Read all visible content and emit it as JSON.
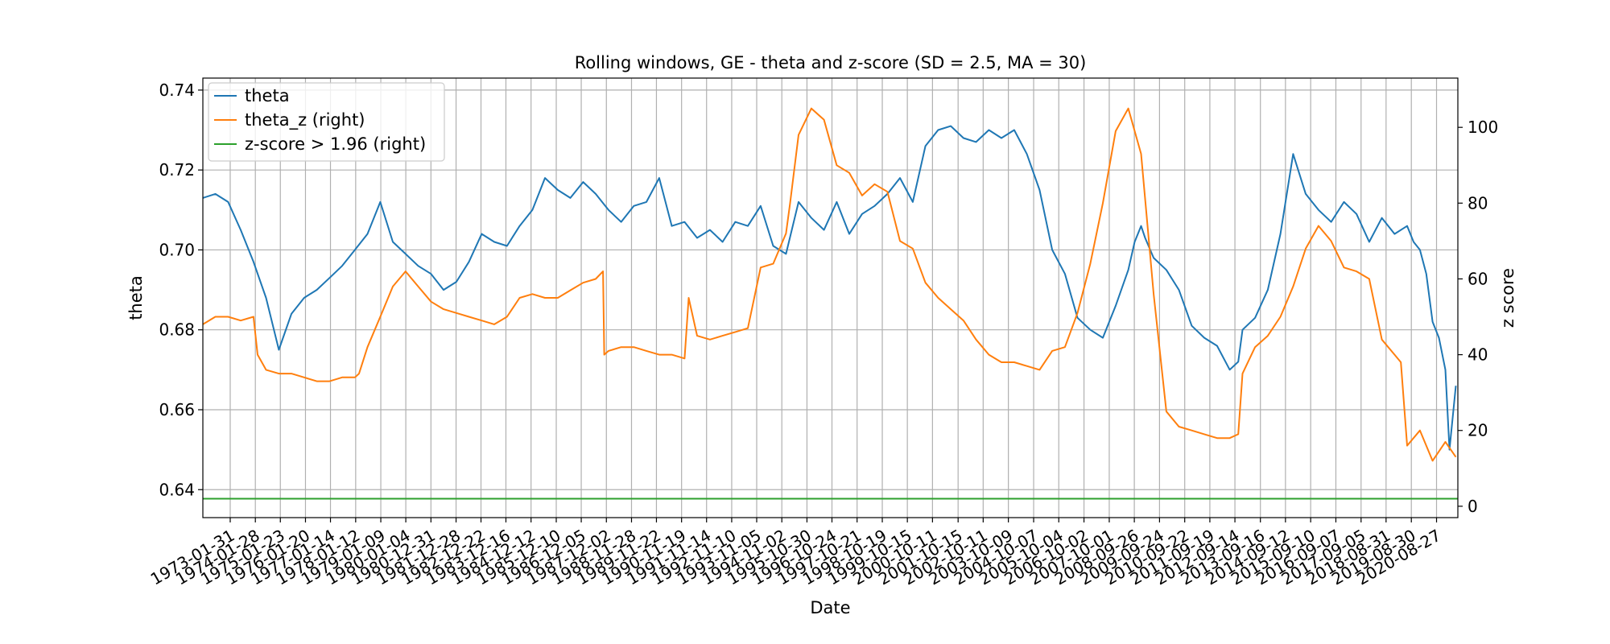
{
  "chart_data": {
    "type": "line",
    "title": "Rolling windows, GE - theta and z-score (SD = 2.5, MA = 30)",
    "xlabel": "Date",
    "ylabel": "theta",
    "ylabel_right": "z score",
    "ylim": [
      0.633,
      0.743
    ],
    "ylim_right": [
      -3,
      113
    ],
    "yticks": [
      0.64,
      0.66,
      0.68,
      0.7,
      0.72,
      0.74
    ],
    "ytick_labels": [
      "0.64",
      "0.66",
      "0.68",
      "0.70",
      "0.72",
      "0.74"
    ],
    "yticks_right": [
      0,
      20,
      40,
      60,
      80,
      100
    ],
    "ytick_labels_right": [
      "0",
      "20",
      "40",
      "60",
      "80",
      "100"
    ],
    "xlim": [
      "1972-01-03",
      "2021-06-30"
    ],
    "grid": true,
    "legend_position": "top-left",
    "xtick_labels": [
      "1973-01-31",
      "1974-01-28",
      "1975-01-23",
      "1976-01-20",
      "1977-01-14",
      "1978-01-12",
      "1979-01-09",
      "1980-01-04",
      "1980-12-31",
      "1981-12-28",
      "1982-12-22",
      "1983-12-16",
      "1984-12-12",
      "1985-12-10",
      "1986-12-05",
      "1987-12-02",
      "1988-11-28",
      "1989-11-22",
      "1990-11-19",
      "1991-11-14",
      "1992-11-10",
      "1993-11-05",
      "1994-11-02",
      "1995-10-30",
      "1996-10-24",
      "1997-10-21",
      "1998-10-19",
      "1999-10-15",
      "2000-10-11",
      "2001-10-15",
      "2002-10-11",
      "2003-10-09",
      "2004-10-07",
      "2005-10-04",
      "2006-10-02",
      "2007-10-01",
      "2008-09-26",
      "2009-09-24",
      "2010-09-22",
      "2011-09-19",
      "2012-09-14",
      "2013-09-16",
      "2014-09-12",
      "2015-09-10",
      "2016-09-07",
      "2017-09-05",
      "2018-08-31",
      "2019-08-30",
      "2020-08-27"
    ],
    "series": [
      {
        "name": "theta",
        "axis": "left",
        "color": "#1f77b4",
        "x": [
          "1972-01-03",
          "1972-07-01",
          "1973-01-01",
          "1973-07-01",
          "1974-01-01",
          "1974-07-01",
          "1975-01-01",
          "1975-07-01",
          "1976-01-01",
          "1976-07-01",
          "1977-01-01",
          "1977-07-01",
          "1978-01-01",
          "1978-07-01",
          "1979-01-01",
          "1979-07-01",
          "1980-01-01",
          "1980-07-01",
          "1981-01-01",
          "1981-07-01",
          "1982-01-01",
          "1982-07-01",
          "1983-01-01",
          "1983-07-01",
          "1984-01-01",
          "1984-07-01",
          "1985-01-01",
          "1985-07-01",
          "1986-01-01",
          "1986-07-01",
          "1987-01-01",
          "1987-07-01",
          "1988-01-01",
          "1988-07-01",
          "1989-01-01",
          "1989-07-01",
          "1990-01-01",
          "1990-07-01",
          "1991-01-01",
          "1991-07-01",
          "1992-01-01",
          "1992-07-01",
          "1993-01-01",
          "1993-07-01",
          "1994-01-01",
          "1994-07-01",
          "1995-01-01",
          "1995-07-01",
          "1996-01-01",
          "1996-07-01",
          "1997-01-01",
          "1997-07-01",
          "1998-01-01",
          "1998-07-01",
          "1999-01-01",
          "1999-07-01",
          "2000-01-01",
          "2000-07-01",
          "2001-01-01",
          "2001-07-01",
          "2002-01-01",
          "2002-07-01",
          "2003-01-01",
          "2003-07-01",
          "2004-01-01",
          "2004-07-01",
          "2005-01-01",
          "2005-07-01",
          "2006-01-01",
          "2006-07-01",
          "2007-01-01",
          "2007-07-01",
          "2008-01-01",
          "2008-07-01",
          "2008-10-01",
          "2009-01-01",
          "2009-03-01",
          "2009-07-01",
          "2010-01-01",
          "2010-07-01",
          "2011-01-01",
          "2011-07-01",
          "2012-01-01",
          "2012-07-01",
          "2012-11-01",
          "2013-01-01",
          "2013-07-01",
          "2014-01-01",
          "2014-07-01",
          "2015-01-01",
          "2015-07-01",
          "2016-01-01",
          "2016-07-01",
          "2017-01-01",
          "2017-07-01",
          "2018-01-01",
          "2018-07-01",
          "2019-01-01",
          "2019-07-01",
          "2019-10-01",
          "2020-01-01",
          "2020-04-01",
          "2020-07-01",
          "2020-10-01",
          "2021-01-01",
          "2021-03-01",
          "2021-06-01"
        ],
        "y": [
          0.713,
          0.714,
          0.712,
          0.705,
          0.697,
          0.688,
          0.675,
          0.684,
          0.688,
          0.69,
          0.693,
          0.696,
          0.7,
          0.704,
          0.712,
          0.702,
          0.699,
          0.696,
          0.694,
          0.69,
          0.692,
          0.697,
          0.704,
          0.702,
          0.701,
          0.706,
          0.71,
          0.718,
          0.715,
          0.713,
          0.717,
          0.714,
          0.71,
          0.707,
          0.711,
          0.712,
          0.718,
          0.706,
          0.707,
          0.703,
          0.705,
          0.702,
          0.707,
          0.706,
          0.711,
          0.701,
          0.699,
          0.712,
          0.708,
          0.705,
          0.712,
          0.704,
          0.709,
          0.711,
          0.714,
          0.718,
          0.712,
          0.726,
          0.73,
          0.731,
          0.728,
          0.727,
          0.73,
          0.728,
          0.73,
          0.724,
          0.715,
          0.7,
          0.694,
          0.683,
          0.68,
          0.678,
          0.686,
          0.695,
          0.702,
          0.706,
          0.703,
          0.698,
          0.695,
          0.69,
          0.681,
          0.678,
          0.676,
          0.67,
          0.672,
          0.68,
          0.683,
          0.69,
          0.704,
          0.724,
          0.714,
          0.71,
          0.707,
          0.712,
          0.709,
          0.702,
          0.708,
          0.704,
          0.706,
          0.702,
          0.7,
          0.694,
          0.682,
          0.678,
          0.67,
          0.65,
          0.666
        ]
      },
      {
        "name": "theta_z (right)",
        "axis": "right",
        "color": "#ff7f0e",
        "x": [
          "1972-01-03",
          "1972-07-01",
          "1973-01-01",
          "1973-07-01",
          "1974-01-01",
          "1974-03-01",
          "1974-07-01",
          "1975-01-01",
          "1975-07-01",
          "1976-01-01",
          "1976-07-01",
          "1977-01-01",
          "1977-07-01",
          "1978-01-01",
          "1978-03-01",
          "1978-07-01",
          "1979-01-01",
          "1979-07-01",
          "1980-01-01",
          "1980-07-01",
          "1981-01-01",
          "1981-07-01",
          "1982-01-01",
          "1982-07-01",
          "1983-01-01",
          "1983-07-01",
          "1984-01-01",
          "1984-07-01",
          "1985-01-01",
          "1985-07-01",
          "1986-01-01",
          "1986-07-01",
          "1987-01-01",
          "1987-07-01",
          "1987-10-15",
          "1987-11-01",
          "1988-01-01",
          "1988-07-01",
          "1989-01-01",
          "1989-07-01",
          "1990-01-01",
          "1990-07-01",
          "1991-01-01",
          "1991-03-01",
          "1991-07-01",
          "1992-01-01",
          "1992-07-01",
          "1993-01-01",
          "1993-07-01",
          "1994-01-01",
          "1994-07-01",
          "1995-01-01",
          "1995-03-01",
          "1995-07-01",
          "1996-01-01",
          "1996-07-01",
          "1997-01-01",
          "1997-07-01",
          "1998-01-01",
          "1998-07-01",
          "1999-01-01",
          "1999-07-01",
          "2000-01-01",
          "2000-07-01",
          "2001-01-01",
          "2001-07-01",
          "2002-01-01",
          "2002-07-01",
          "2003-01-01",
          "2003-07-01",
          "2004-01-01",
          "2004-07-01",
          "2005-01-01",
          "2005-07-01",
          "2006-01-01",
          "2006-07-01",
          "2007-01-01",
          "2007-07-01",
          "2008-01-01",
          "2008-07-01",
          "2009-01-01",
          "2009-07-01",
          "2010-01-01",
          "2010-07-01",
          "2011-01-01",
          "2011-07-01",
          "2012-01-01",
          "2012-07-01",
          "2012-11-01",
          "2013-01-01",
          "2013-07-01",
          "2014-01-01",
          "2014-07-01",
          "2015-01-01",
          "2015-07-01",
          "2016-01-01",
          "2016-07-01",
          "2017-01-01",
          "2017-07-01",
          "2018-01-01",
          "2018-07-01",
          "2019-01-01",
          "2019-04-01",
          "2019-07-01",
          "2020-01-01",
          "2020-07-01",
          "2021-01-01",
          "2021-06-01"
        ],
        "y": [
          48,
          50,
          50,
          49,
          50,
          40,
          36,
          35,
          35,
          34,
          33,
          33,
          34,
          34,
          35,
          42,
          50,
          58,
          62,
          58,
          54,
          52,
          51,
          50,
          49,
          48,
          50,
          55,
          56,
          55,
          55,
          57,
          59,
          60,
          62,
          40,
          41,
          42,
          42,
          41,
          40,
          40,
          39,
          55,
          45,
          44,
          45,
          46,
          47,
          63,
          64,
          72,
          80,
          98,
          105,
          102,
          90,
          88,
          82,
          85,
          83,
          70,
          68,
          59,
          55,
          52,
          49,
          44,
          40,
          38,
          38,
          37,
          36,
          41,
          42,
          51,
          64,
          80,
          99,
          105,
          93,
          56,
          25,
          21,
          20,
          19,
          18,
          18,
          19,
          35,
          42,
          45,
          50,
          58,
          68,
          74,
          70,
          63,
          62,
          60,
          44,
          40,
          38,
          16,
          20,
          12,
          17,
          13
        ]
      },
      {
        "name": "z-score > 1.96 (right)",
        "axis": "right",
        "color": "#2ca02c",
        "x": [
          "1972-01-03",
          "2021-06-30"
        ],
        "y": [
          2,
          2
        ]
      }
    ]
  }
}
